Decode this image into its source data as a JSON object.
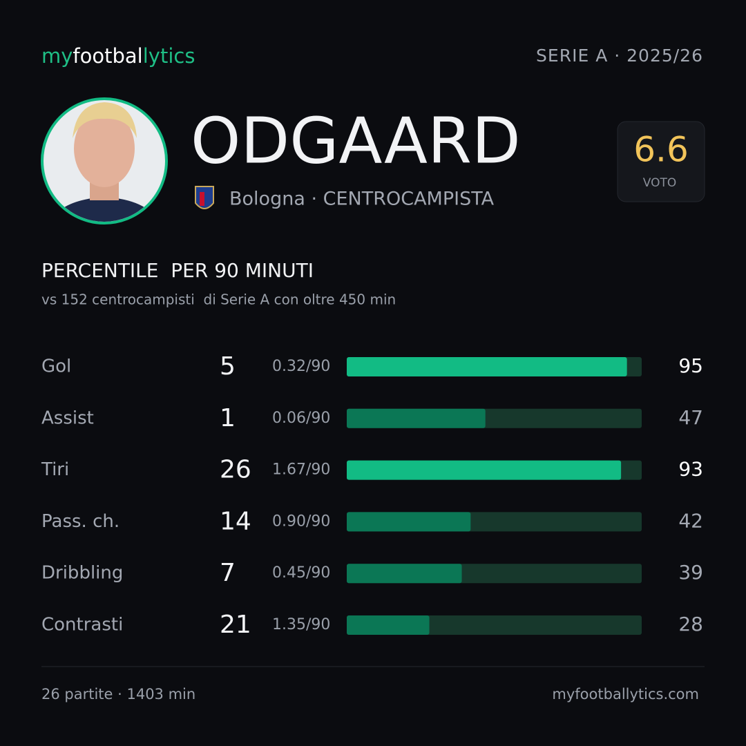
{
  "brand": {
    "parts": [
      "my",
      "footbal",
      "lytics"
    ],
    "colors": [
      "#1fbf86",
      "#ffffff",
      "#1fbf86"
    ]
  },
  "league": "SERIE A · 2025/26",
  "player": {
    "name": "ODGAARD",
    "info": "Bologna · CENTROCAMPISTA",
    "rating": 6.6,
    "rating_label": "VOTO"
  },
  "section": {
    "title": "PERCENTILE  PER 90 MINUTI",
    "subtitle": "vs 152 centrocampisti  di Serie A con oltre 450 min"
  },
  "stats": {
    "max": 100,
    "track_color": "#17382c",
    "rows": [
      {
        "label": "Gol",
        "total": 5,
        "per90": "0.32/90",
        "percentile": 95,
        "color": "#12bb84",
        "highlight": true
      },
      {
        "label": "Assist",
        "total": 1,
        "per90": "0.06/90",
        "percentile": 47,
        "color": "#0b7755",
        "highlight": false
      },
      {
        "label": "Tiri",
        "total": 26,
        "per90": "1.67/90",
        "percentile": 93,
        "color": "#12bb84",
        "highlight": true
      },
      {
        "label": "Pass. ch.",
        "total": 14,
        "per90": "0.90/90",
        "percentile": 42,
        "color": "#0b7755",
        "highlight": false
      },
      {
        "label": "Dribbling",
        "total": 7,
        "per90": "0.45/90",
        "percentile": 39,
        "color": "#0b7755",
        "highlight": false
      },
      {
        "label": "Contrasti",
        "total": 21,
        "per90": "1.35/90",
        "percentile": 28,
        "color": "#0b7755",
        "highlight": false
      }
    ]
  },
  "footer": {
    "left": "26 partite · 1403 min",
    "right": "myfootballytics.com"
  }
}
